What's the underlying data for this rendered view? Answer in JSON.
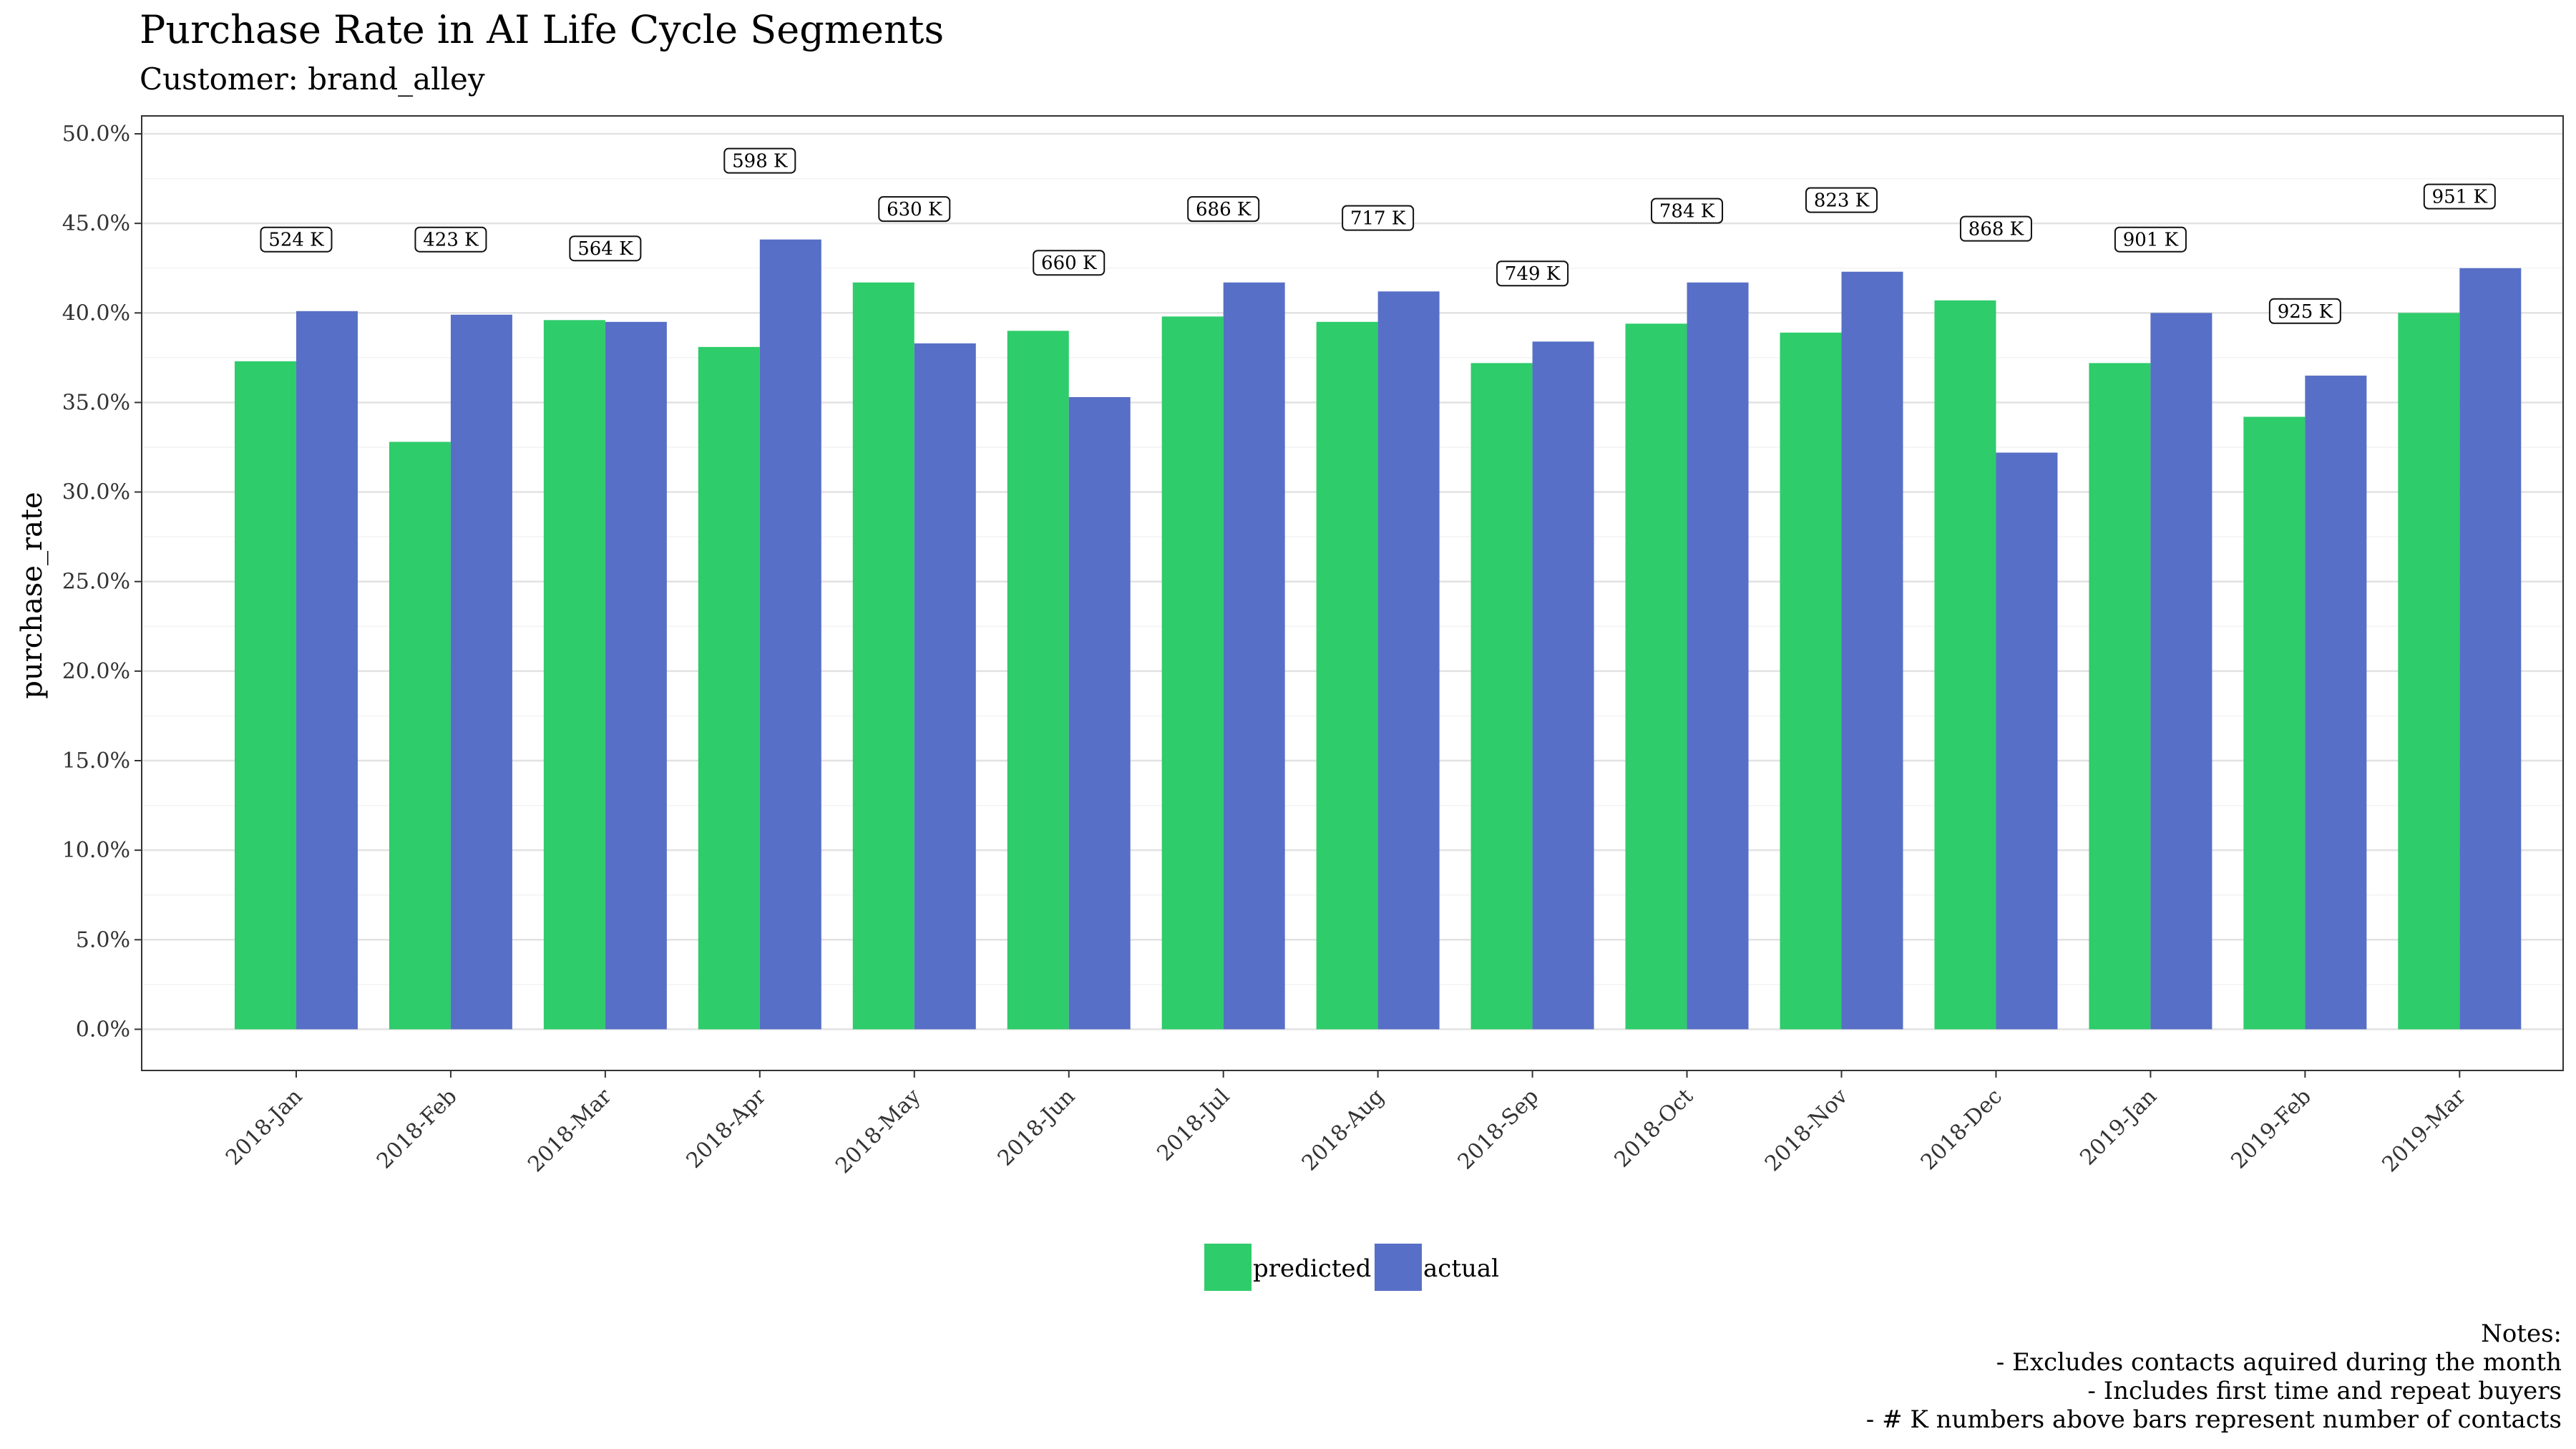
{
  "chart_data": {
    "type": "bar",
    "title": "Purchase Rate in AI Life Cycle Segments",
    "subtitle": "Customer: brand_alley",
    "ylabel": "purchase_rate",
    "xlabel": "",
    "ylim": [
      -0.023,
      0.51
    ],
    "y_ticks": [
      "0.0%",
      "5.0%",
      "10.0%",
      "15.0%",
      "20.0%",
      "25.0%",
      "30.0%",
      "35.0%",
      "40.0%",
      "45.0%",
      "50.0%"
    ],
    "grid": true,
    "categories": [
      "2018-Jan",
      "2018-Feb",
      "2018-Mar",
      "2018-Apr",
      "2018-May",
      "2018-Jun",
      "2018-Jul",
      "2018-Aug",
      "2018-Sep",
      "2018-Oct",
      "2018-Nov",
      "2018-Dec",
      "2019-Jan",
      "2019-Feb",
      "2019-Mar"
    ],
    "series": [
      {
        "name": "predicted",
        "color": "#2ecc6a",
        "values": [
          0.373,
          0.328,
          0.396,
          0.381,
          0.417,
          0.39,
          0.398,
          0.395,
          0.372,
          0.394,
          0.389,
          0.407,
          0.372,
          0.342,
          0.4
        ]
      },
      {
        "name": "actual",
        "color": "#576fc6",
        "values": [
          0.401,
          0.399,
          0.395,
          0.441,
          0.383,
          0.353,
          0.417,
          0.412,
          0.384,
          0.417,
          0.423,
          0.322,
          0.4,
          0.365,
          0.425
        ]
      }
    ],
    "contacts_labels": [
      "524 K",
      "423 K",
      "564 K",
      "598 K",
      "630 K",
      "660 K",
      "686 K",
      "717 K",
      "749 K",
      "784 K",
      "823 K",
      "868 K",
      "901 K",
      "925 K",
      "951 K"
    ],
    "label_positions": [
      0.441,
      0.441,
      0.436,
      0.485,
      0.458,
      0.428,
      0.458,
      0.453,
      0.422,
      0.457,
      0.463,
      0.447,
      0.441,
      0.401,
      0.465
    ],
    "legend_placement": "bottom",
    "notes": [
      "Notes:",
      "- Excludes contacts aquired during the month",
      "- Includes first time and repeat buyers",
      "- # K numbers above bars represent number of contacts"
    ]
  }
}
